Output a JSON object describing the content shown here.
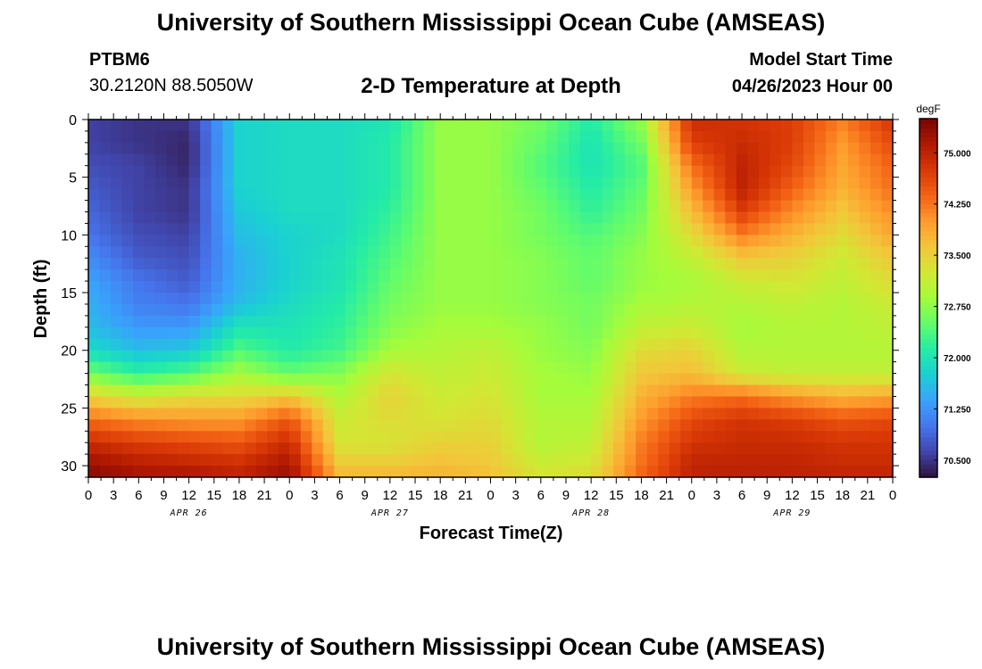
{
  "header": {
    "title": "University of Southern Mississippi Ocean Cube (AMSEAS)",
    "station": "PTBM6",
    "coordinates": "30.2120N  88.5050W",
    "plot_title": "2-D Temperature at Depth",
    "model_start_label": "Model Start Time",
    "model_start_value": "04/26/2023 Hour 00"
  },
  "footer": {
    "title": "University of Southern Mississippi Ocean Cube (AMSEAS)"
  },
  "chart_data": {
    "type": "heatmap",
    "xlabel": "Forecast Time(Z)",
    "ylabel": "Depth (ft)",
    "x_range_hours": [
      0,
      96
    ],
    "ylim": [
      0,
      31
    ],
    "y_inverted": true,
    "x_tick_labels": [
      "0",
      "3",
      "6",
      "9",
      "12",
      "15",
      "18",
      "21",
      "0",
      "3",
      "6",
      "9",
      "12",
      "15",
      "18",
      "21",
      "0",
      "3",
      "6",
      "9",
      "12",
      "15",
      "18",
      "21",
      "0",
      "3",
      "6",
      "9",
      "12",
      "15",
      "18",
      "21",
      "0"
    ],
    "y_ticks": [
      0,
      5,
      10,
      15,
      20,
      25,
      30
    ],
    "y_tick_labels": [
      "0",
      "5",
      "10",
      "15",
      "20",
      "25",
      "30"
    ],
    "date_labels": [
      {
        "hour": 12,
        "label": "APR 26"
      },
      {
        "hour": 36,
        "label": "APR 27"
      },
      {
        "hour": 60,
        "label": "APR 28"
      },
      {
        "hour": 84,
        "label": "APR 29"
      }
    ],
    "colorbar": {
      "units": "degF",
      "min": 70.25,
      "max": 75.5,
      "tick_labels": [
        "75.000",
        "74.250",
        "73.500",
        "72.750",
        "72.000",
        "71.250",
        "70.500"
      ],
      "tick_values": [
        75.0,
        74.25,
        73.5,
        72.75,
        72.0,
        71.25,
        70.5
      ],
      "colors": [
        "#30123b",
        "#4145ab",
        "#4675ed",
        "#39a2fc",
        "#1bcfd4",
        "#24eca6",
        "#61fc6c",
        "#a4fc3b",
        "#d1e834",
        "#f3c63a",
        "#fe9b2d",
        "#f36315",
        "#d93806",
        "#b11901",
        "#7a0402"
      ]
    },
    "depth_levels_ft": [
      0,
      2,
      4,
      6,
      8,
      10,
      12,
      14,
      16,
      18,
      20,
      22,
      24,
      26,
      28,
      30,
      31
    ],
    "time_hours": [
      0,
      6,
      12,
      18,
      24,
      30,
      36,
      42,
      48,
      54,
      60,
      66,
      72,
      78,
      84,
      90,
      96
    ],
    "temperature_degF": [
      [
        70.6,
        70.5,
        70.5,
        71.8,
        71.9,
        71.9,
        72.0,
        72.8,
        72.8,
        72.6,
        72.1,
        72.8,
        74.9,
        74.8,
        74.7,
        74.2,
        74.8
      ],
      [
        70.6,
        70.5,
        70.4,
        71.8,
        71.9,
        71.9,
        72.1,
        72.8,
        72.8,
        72.5,
        72.0,
        72.6,
        74.7,
        74.9,
        74.7,
        74.0,
        74.6
      ],
      [
        70.7,
        70.6,
        70.4,
        71.8,
        71.9,
        71.9,
        72.1,
        72.8,
        72.8,
        72.4,
        72.0,
        72.4,
        74.3,
        75.0,
        74.6,
        73.9,
        74.4
      ],
      [
        70.8,
        70.6,
        70.5,
        71.8,
        71.9,
        71.9,
        72.1,
        72.8,
        72.8,
        72.5,
        72.1,
        72.5,
        74.0,
        75.0,
        74.4,
        73.8,
        74.3
      ],
      [
        70.9,
        70.6,
        70.5,
        71.7,
        71.9,
        71.9,
        72.2,
        72.8,
        72.8,
        72.6,
        72.2,
        72.6,
        73.7,
        74.7,
        74.1,
        73.6,
        74.1
      ],
      [
        71.0,
        70.7,
        70.6,
        71.6,
        71.8,
        71.9,
        72.3,
        72.8,
        72.8,
        72.6,
        72.4,
        72.7,
        73.4,
        74.2,
        73.8,
        73.4,
        73.9
      ],
      [
        71.2,
        70.8,
        70.7,
        71.5,
        71.8,
        72.0,
        72.4,
        72.8,
        72.8,
        72.7,
        72.5,
        72.8,
        73.1,
        73.6,
        73.5,
        73.2,
        73.6
      ],
      [
        71.4,
        71.0,
        70.8,
        71.5,
        71.8,
        72.0,
        72.5,
        72.8,
        72.8,
        72.7,
        72.5,
        72.8,
        72.9,
        73.2,
        73.3,
        73.1,
        73.4
      ],
      [
        71.5,
        71.1,
        71.0,
        71.6,
        71.9,
        72.1,
        72.6,
        72.8,
        72.8,
        72.7,
        72.6,
        72.9,
        73.0,
        73.0,
        73.1,
        73.0,
        73.2
      ],
      [
        71.6,
        71.3,
        71.3,
        72.0,
        72.0,
        72.2,
        72.7,
        72.9,
        72.9,
        72.8,
        72.6,
        73.1,
        73.2,
        72.9,
        73.0,
        73.0,
        73.1
      ],
      [
        71.9,
        71.6,
        71.7,
        72.4,
        72.1,
        72.3,
        72.9,
        73.0,
        73.1,
        72.8,
        72.7,
        73.4,
        73.5,
        73.0,
        73.0,
        73.0,
        73.0
      ],
      [
        72.6,
        72.2,
        72.4,
        72.9,
        72.5,
        72.7,
        73.3,
        73.1,
        73.2,
        72.9,
        72.8,
        73.6,
        73.7,
        73.2,
        73.1,
        73.1,
        73.1
      ],
      [
        73.5,
        73.2,
        73.4,
        73.4,
        73.6,
        73.0,
        73.5,
        73.2,
        73.3,
        72.9,
        72.9,
        73.8,
        74.2,
        74.3,
        74.0,
        73.8,
        73.9
      ],
      [
        74.3,
        74.1,
        74.0,
        74.0,
        74.5,
        73.2,
        73.4,
        73.3,
        73.4,
        73.0,
        73.0,
        74.0,
        74.6,
        74.8,
        74.7,
        74.5,
        74.6
      ],
      [
        74.9,
        74.7,
        74.6,
        74.5,
        74.9,
        73.3,
        73.3,
        73.5,
        73.5,
        73.0,
        73.1,
        74.2,
        74.8,
        74.9,
        74.9,
        74.8,
        74.8
      ],
      [
        75.3,
        75.1,
        75.0,
        74.9,
        75.2,
        73.6,
        73.6,
        73.7,
        73.6,
        73.2,
        73.3,
        74.3,
        75.0,
        75.0,
        75.0,
        74.9,
        74.9
      ],
      [
        75.4,
        75.2,
        75.2,
        75.0,
        75.3,
        73.8,
        73.8,
        73.8,
        73.7,
        73.3,
        73.4,
        74.4,
        75.0,
        75.0,
        75.0,
        75.0,
        75.0
      ]
    ]
  }
}
